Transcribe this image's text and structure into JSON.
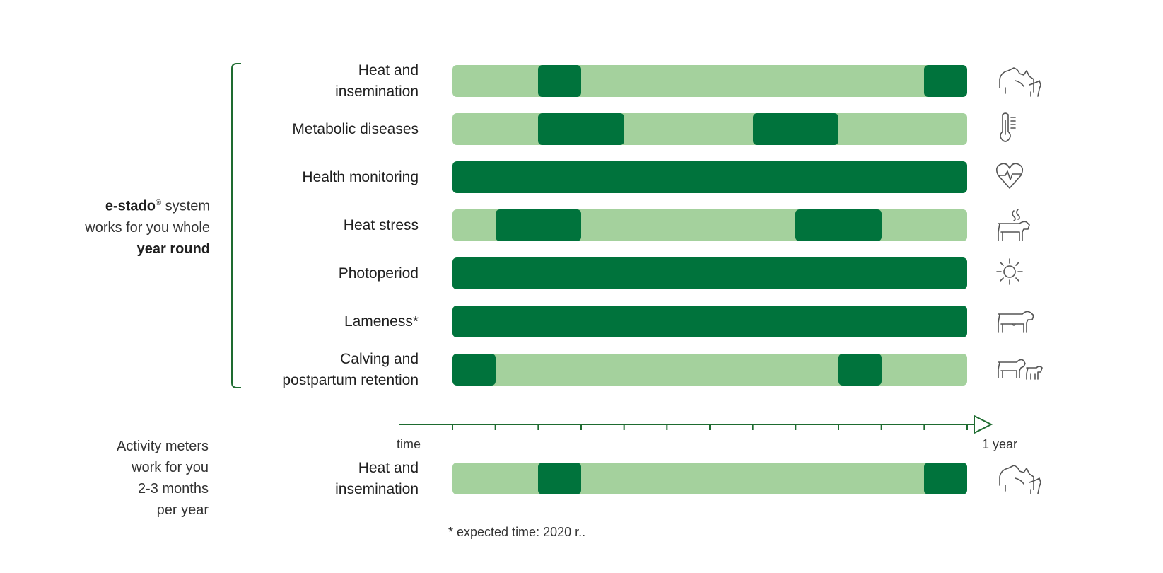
{
  "colors": {
    "light": "#a4d19d",
    "dark": "#00733c",
    "line": "#1e6b30",
    "icon": "#555555"
  },
  "system_text": {
    "brand": "e-stado",
    "reg": "®",
    "line1_rest": " system",
    "line2": "works for you whole",
    "line3": "year round"
  },
  "meters_text": {
    "lines": [
      "Activity meters",
      "work for you",
      "2-3 months",
      "per year"
    ]
  },
  "axis": {
    "start_label": "time",
    "end_label": "1 year"
  },
  "footnote": "* expected time: 2020 r..",
  "chart_data": {
    "type": "bar",
    "x_unit": "month",
    "xlim": [
      0,
      12
    ],
    "ticks": [
      0,
      1,
      2,
      3,
      4,
      5,
      6,
      7,
      8,
      9,
      10,
      11,
      12
    ],
    "series": [
      {
        "label": [
          "Heat and",
          "insemination"
        ],
        "icon": "cows-mating-icon",
        "active": [
          [
            2,
            3
          ],
          [
            11,
            12
          ]
        ]
      },
      {
        "label": [
          "Metabolic diseases"
        ],
        "icon": "thermometer-icon",
        "active": [
          [
            2,
            4
          ],
          [
            7,
            9
          ]
        ]
      },
      {
        "label": [
          "Health monitoring"
        ],
        "icon": "heart-pulse-icon",
        "active": [
          [
            0,
            12
          ]
        ]
      },
      {
        "label": [
          "Heat stress"
        ],
        "icon": "cow-heat-icon",
        "active": [
          [
            1,
            3
          ],
          [
            8,
            10
          ]
        ]
      },
      {
        "label": [
          "Photoperiod"
        ],
        "icon": "sun-icon",
        "active": [
          [
            0,
            12
          ]
        ]
      },
      {
        "label": [
          "Lameness*"
        ],
        "icon": "cow-icon",
        "active": [
          [
            0,
            12
          ]
        ]
      },
      {
        "label": [
          "Calving and",
          "postpartum retention"
        ],
        "icon": "cow-calf-icon",
        "active": [
          [
            0,
            1
          ],
          [
            9,
            10
          ]
        ]
      }
    ],
    "meters_series": {
      "label": [
        "Heat and",
        "insemination"
      ],
      "icon": "cows-mating-icon",
      "active": [
        [
          2,
          3
        ],
        [
          11,
          12
        ]
      ]
    }
  }
}
